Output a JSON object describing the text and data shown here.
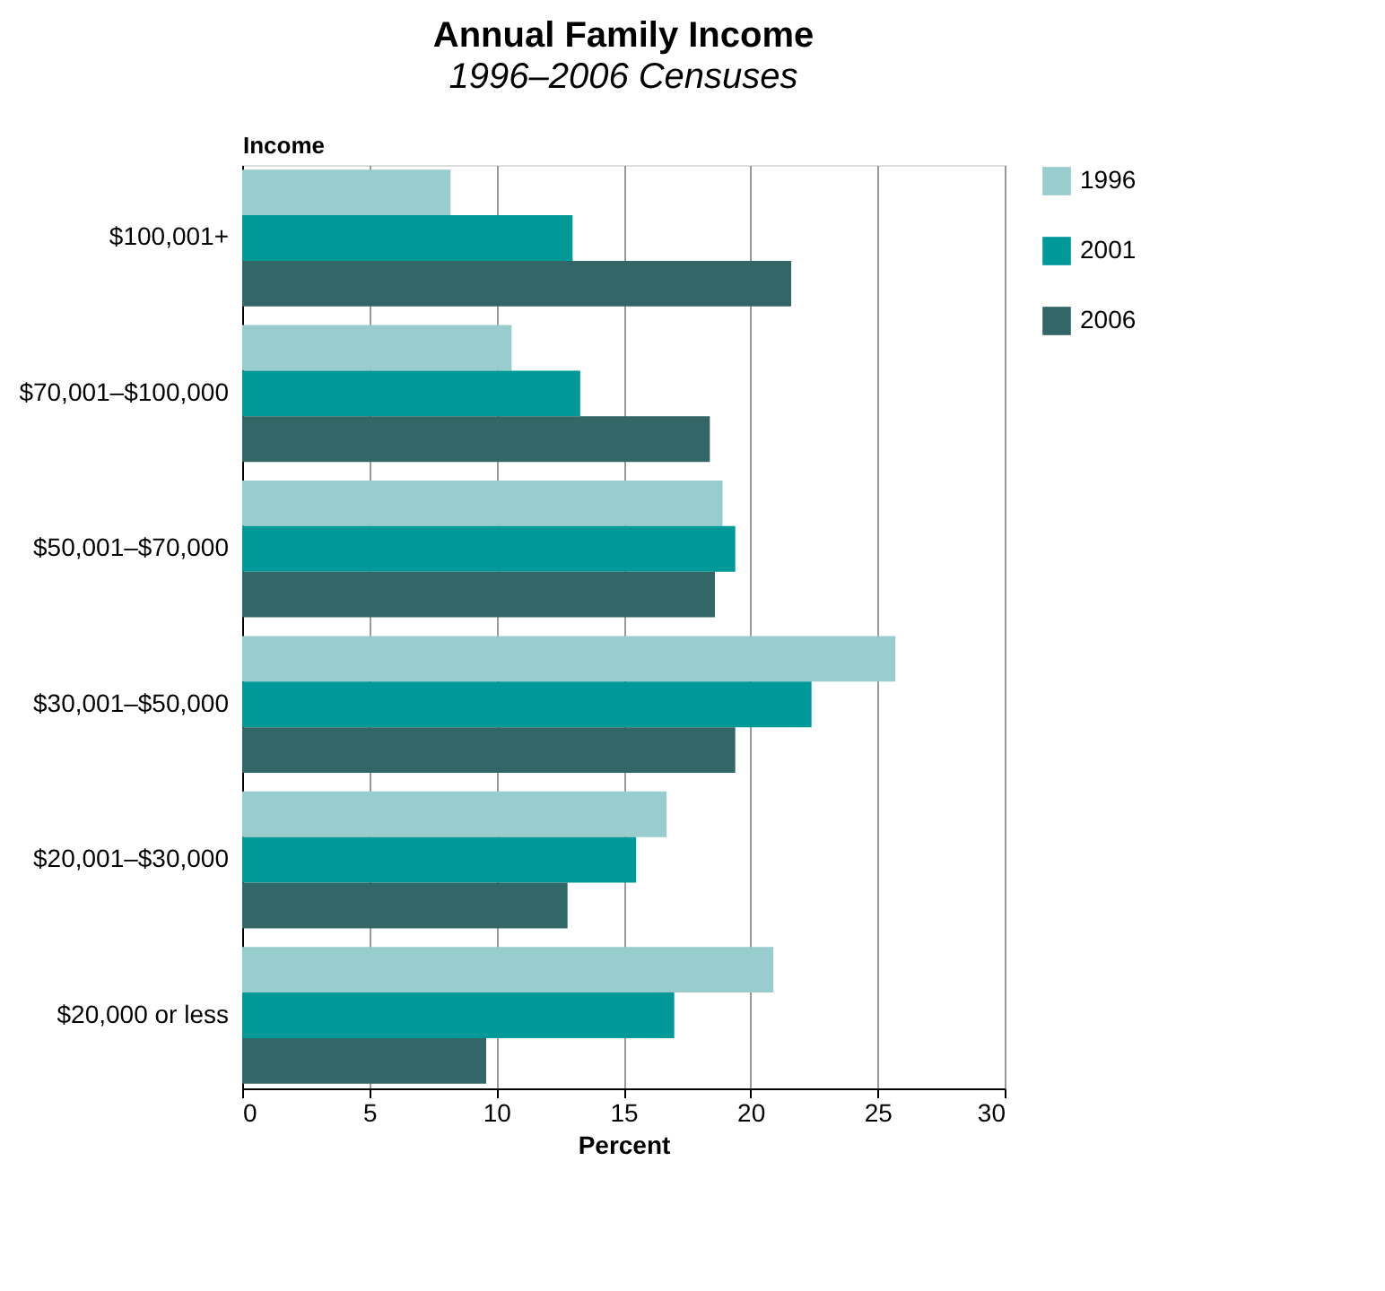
{
  "chart_data": {
    "type": "bar",
    "orientation": "horizontal",
    "title": "Annual Family Income",
    "subtitle": "1996–2006 Censuses",
    "xlabel": "Percent",
    "ylabel": "Income",
    "categories": [
      "$100,001+",
      "$70,001–$100,000",
      "$50,001–$70,000",
      "$30,001–$50,000",
      "$20,001–$30,000",
      "$20,000 or less"
    ],
    "series": [
      {
        "name": "1996",
        "color": "#99cccc",
        "values": [
          8.2,
          10.6,
          18.9,
          25.7,
          16.7,
          20.9
        ]
      },
      {
        "name": "2001",
        "color": "#009999",
        "values": [
          13.0,
          13.3,
          19.4,
          22.4,
          15.5,
          17.0
        ]
      },
      {
        "name": "2006",
        "color": "#336666",
        "values": [
          21.6,
          18.4,
          18.6,
          19.4,
          12.8,
          9.6
        ]
      }
    ],
    "xlim": [
      0,
      30
    ],
    "xticks": [
      0,
      5,
      10,
      15,
      20,
      25,
      30
    ],
    "grid": "x",
    "legend": "right"
  }
}
